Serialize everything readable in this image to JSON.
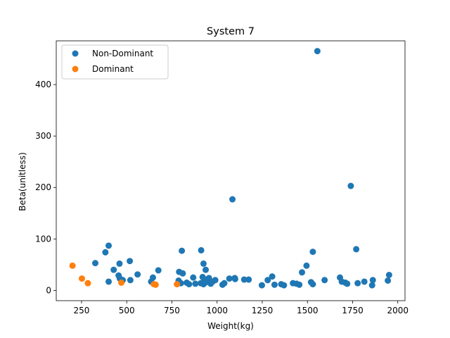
{
  "chart_data": {
    "type": "scatter",
    "title": "System 7",
    "xlabel": "Weight(kg)",
    "ylabel": "Beta(unitless)",
    "xlim": [
      110,
      2040
    ],
    "ylim": [
      -20,
      485
    ],
    "xticks": [
      250,
      500,
      750,
      1000,
      1250,
      1500,
      1750,
      2000
    ],
    "yticks": [
      0,
      100,
      200,
      300,
      400
    ],
    "grid": false,
    "legend_position": "top-left",
    "series": [
      {
        "name": "Non-Dominant",
        "color": "#1f77b4",
        "points": [
          [
            400,
            87
          ],
          [
            382,
            74
          ],
          [
            326,
            53
          ],
          [
            428,
            40
          ],
          [
            460,
            52
          ],
          [
            455,
            29
          ],
          [
            462,
            23
          ],
          [
            478,
            20
          ],
          [
            400,
            17
          ],
          [
            520,
            20
          ],
          [
            517,
            57
          ],
          [
            560,
            31
          ],
          [
            635,
            17
          ],
          [
            645,
            25
          ],
          [
            675,
            39
          ],
          [
            805,
            77
          ],
          [
            790,
            36
          ],
          [
            810,
            33
          ],
          [
            787,
            19
          ],
          [
            800,
            14
          ],
          [
            832,
            15
          ],
          [
            845,
            12
          ],
          [
            868,
            25
          ],
          [
            880,
            13
          ],
          [
            912,
            78
          ],
          [
            925,
            52
          ],
          [
            937,
            40
          ],
          [
            920,
            26
          ],
          [
            932,
            21
          ],
          [
            945,
            18
          ],
          [
            955,
            24
          ],
          [
            910,
            14
          ],
          [
            925,
            12
          ],
          [
            940,
            16
          ],
          [
            965,
            13
          ],
          [
            975,
            17
          ],
          [
            990,
            20
          ],
          [
            1030,
            11
          ],
          [
            1040,
            14
          ],
          [
            1068,
            23
          ],
          [
            1085,
            177
          ],
          [
            1098,
            24
          ],
          [
            1100,
            22
          ],
          [
            1150,
            21
          ],
          [
            1175,
            21
          ],
          [
            1248,
            10
          ],
          [
            1280,
            20
          ],
          [
            1305,
            27
          ],
          [
            1318,
            11
          ],
          [
            1355,
            12
          ],
          [
            1370,
            10
          ],
          [
            1420,
            14
          ],
          [
            1440,
            13
          ],
          [
            1455,
            11
          ],
          [
            1470,
            35
          ],
          [
            1495,
            48
          ],
          [
            1520,
            16
          ],
          [
            1530,
            12
          ],
          [
            1530,
            75
          ],
          [
            1555,
            465
          ],
          [
            1595,
            20
          ],
          [
            1680,
            25
          ],
          [
            1690,
            17
          ],
          [
            1710,
            15
          ],
          [
            1720,
            13
          ],
          [
            1740,
            203
          ],
          [
            1770,
            80
          ],
          [
            1778,
            14
          ],
          [
            1815,
            17
          ],
          [
            1858,
            10
          ],
          [
            1862,
            20
          ],
          [
            1945,
            19
          ],
          [
            1952,
            30
          ]
        ]
      },
      {
        "name": "Dominant",
        "color": "#ff7f0e",
        "points": [
          [
            200,
            48
          ],
          [
            252,
            23
          ],
          [
            285,
            14
          ],
          [
            470,
            15
          ],
          [
            650,
            12
          ],
          [
            660,
            11
          ],
          [
            778,
            12
          ]
        ]
      }
    ]
  }
}
